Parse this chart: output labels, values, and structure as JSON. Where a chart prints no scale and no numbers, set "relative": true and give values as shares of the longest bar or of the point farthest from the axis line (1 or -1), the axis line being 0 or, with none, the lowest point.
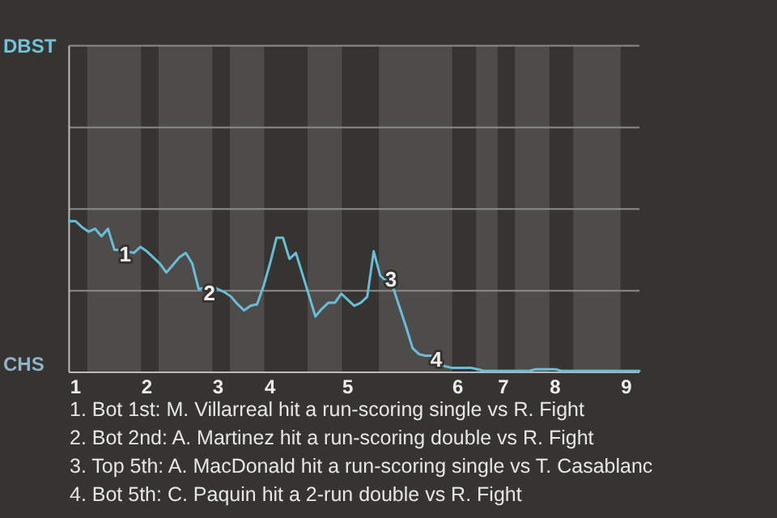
{
  "chart_data": {
    "type": "line",
    "relative": true,
    "categories": [
      null,
      "1",
      null,
      null,
      null,
      null,
      null,
      null,
      null,
      null,
      null,
      null,
      "2",
      null,
      null,
      null,
      null,
      null,
      null,
      null,
      null,
      null,
      null,
      "3",
      null,
      null,
      null,
      null,
      null,
      null,
      null,
      "4",
      null,
      null,
      null,
      null,
      null,
      null,
      null,
      null,
      null,
      null,
      null,
      "5",
      null,
      null,
      null,
      null,
      null,
      null,
      null,
      null,
      null,
      null,
      null,
      null,
      null,
      null,
      null,
      null,
      "6",
      null,
      null,
      null,
      null,
      null,
      null,
      "7",
      null,
      null,
      null,
      null,
      null,
      null,
      null,
      "8",
      null,
      null,
      null,
      null,
      null,
      null,
      null,
      null,
      null,
      null,
      "9",
      null,
      null
    ],
    "ref_lines": [
      {
        "axis": "y",
        "value": 0.54,
        "color": "#8a8a8a"
      },
      {
        "axis": "y",
        "value": 1.08,
        "color": "#8a8a8a"
      },
      {
        "axis": "y",
        "value": 1.62,
        "color": "#8a8a8a"
      }
    ],
    "marker": "none",
    "line_style": "solid",
    "series": [
      {
        "color": "#6bbcd6",
        "values": [
          1.0,
          1.0,
          0.96,
          0.93,
          0.95,
          0.9,
          0.95,
          0.81,
          0.81,
          0.8,
          0.79,
          0.83,
          0.8,
          0.76,
          0.72,
          0.66,
          0.71,
          0.76,
          0.79,
          0.72,
          0.55,
          0.56,
          0.57,
          0.55,
          0.53,
          0.5,
          0.45,
          0.41,
          0.44,
          0.45,
          0.57,
          0.72,
          0.89,
          0.89,
          0.75,
          0.79,
          0.65,
          0.51,
          0.37,
          0.42,
          0.46,
          0.46,
          0.52,
          0.48,
          0.44,
          0.46,
          0.5,
          0.8,
          0.64,
          0.6,
          0.56,
          0.43,
          0.3,
          0.16,
          0.12,
          0.11,
          0.11,
          0.07,
          0.04,
          0.03,
          0.03,
          0.03,
          0.03,
          0.02,
          0.01,
          0.01,
          0.01,
          0.01,
          0.01,
          0.01,
          0.01,
          0.01,
          0.02,
          0.02,
          0.02,
          0.02,
          0.01,
          0.01,
          0.01,
          0.01,
          0.01,
          0.01,
          0.01,
          0.01,
          0.01,
          0.01,
          0.01,
          0.01,
          0.01
        ]
      }
    ],
    "annotations": [
      "DBST",
      "CHS",
      "1",
      "2",
      "3",
      "4",
      "1. Bot 1st: M. Villarreal hit a run-scoring single vs R. Fight",
      "2. Bot 2nd: A. Martinez hit a run-scoring double vs R. Fight",
      "3. Top 5th: A. MacDonald hit a run-scoring single vs T. Casablanc",
      "4. Bot 5th: C. Paquin hit a 2-run double vs R. Fight"
    ]
  }
}
